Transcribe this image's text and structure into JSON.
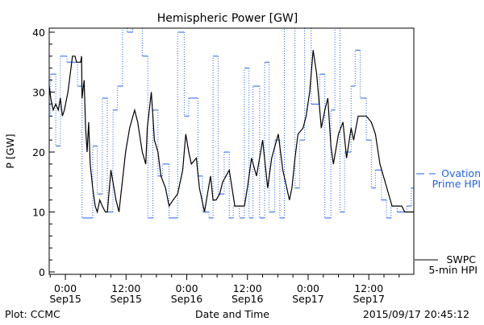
{
  "chart_data": {
    "type": "line",
    "title": "Hemispheric Power [GW]",
    "xlabel": "Date and Time",
    "ylabel": "P [GW]",
    "ylim": [
      0,
      40
    ],
    "xlim_hours_from_sep15_0000": [
      -3.2,
      68.9
    ],
    "y_ticks": [
      "0",
      "10",
      "20",
      "30",
      "40"
    ],
    "x_ticks": [
      {
        "hour": 0,
        "time": "0:00",
        "date": "Sep15"
      },
      {
        "hour": 12,
        "time": "12:00",
        "date": "Sep15"
      },
      {
        "hour": 24,
        "time": "0:00",
        "date": "Sep16"
      },
      {
        "hour": 36,
        "time": "12:00",
        "date": "Sep16"
      },
      {
        "hour": 48,
        "time": "0:00",
        "date": "Sep17"
      },
      {
        "hour": 60,
        "time": "12:00",
        "date": "Sep17"
      }
    ],
    "series": [
      {
        "name": "SWPC 5-min HPI",
        "legend": [
          "SWPC",
          "5-min HPI"
        ],
        "color": "#000000",
        "points": [
          [
            -3.2,
            31
          ],
          [
            -2.9,
            29
          ],
          [
            -2.4,
            27
          ],
          [
            -1.9,
            28
          ],
          [
            -1.4,
            27
          ],
          [
            -1.0,
            29
          ],
          [
            -0.6,
            26
          ],
          [
            -0.2,
            27
          ],
          [
            0.5,
            30
          ],
          [
            1.1,
            34
          ],
          [
            1.4,
            36
          ],
          [
            1.9,
            36
          ],
          [
            2.2,
            35
          ],
          [
            3.0,
            35
          ],
          [
            3.2,
            36
          ],
          [
            3.3,
            29
          ],
          [
            3.7,
            32
          ],
          [
            4.0,
            24
          ],
          [
            4.3,
            20
          ],
          [
            4.6,
            25
          ],
          [
            4.9,
            18
          ],
          [
            5.4,
            14
          ],
          [
            5.9,
            11
          ],
          [
            6.3,
            10
          ],
          [
            6.8,
            12
          ],
          [
            7.3,
            11
          ],
          [
            7.9,
            10
          ],
          [
            8.3,
            10
          ],
          [
            9.0,
            17
          ],
          [
            10.0,
            12
          ],
          [
            10.6,
            10
          ],
          [
            11.9,
            20
          ],
          [
            12.7,
            24
          ],
          [
            13.7,
            27
          ],
          [
            14.3,
            25
          ],
          [
            15.2,
            20
          ],
          [
            15.9,
            18
          ],
          [
            16.2,
            24
          ],
          [
            17.0,
            30
          ],
          [
            17.6,
            22
          ],
          [
            18.3,
            20
          ],
          [
            18.9,
            16
          ],
          [
            19.8,
            14
          ],
          [
            20.5,
            11
          ],
          [
            21.3,
            12
          ],
          [
            22.2,
            13
          ],
          [
            23.2,
            17
          ],
          [
            23.8,
            23
          ],
          [
            24.4,
            20
          ],
          [
            24.9,
            18
          ],
          [
            25.9,
            19
          ],
          [
            26.5,
            14
          ],
          [
            27.5,
            10
          ],
          [
            28.1,
            13
          ],
          [
            28.7,
            16
          ],
          [
            29.2,
            12
          ],
          [
            29.8,
            12
          ],
          [
            30.5,
            13
          ],
          [
            31.1,
            15
          ],
          [
            32.4,
            17
          ],
          [
            33.5,
            11
          ],
          [
            35.4,
            11
          ],
          [
            36.0,
            14
          ],
          [
            36.8,
            19
          ],
          [
            37.8,
            16
          ],
          [
            39.0,
            22
          ],
          [
            40.0,
            14
          ],
          [
            40.8,
            19
          ],
          [
            42.1,
            23
          ],
          [
            43.0,
            17
          ],
          [
            44.3,
            12
          ],
          [
            44.8,
            14
          ],
          [
            45.4,
            19
          ],
          [
            46.0,
            23
          ],
          [
            47.0,
            24
          ],
          [
            47.6,
            26
          ],
          [
            48.3,
            30
          ],
          [
            49.0,
            37
          ],
          [
            49.7,
            33
          ],
          [
            50.6,
            24
          ],
          [
            51.3,
            27
          ],
          [
            51.9,
            29
          ],
          [
            52.5,
            21
          ],
          [
            53.0,
            18
          ],
          [
            54.0,
            23
          ],
          [
            54.9,
            25
          ],
          [
            55.6,
            19
          ],
          [
            56.5,
            24
          ],
          [
            57.0,
            22
          ],
          [
            57.9,
            26
          ],
          [
            59.5,
            26
          ],
          [
            60.5,
            25
          ],
          [
            61.3,
            23
          ],
          [
            62.2,
            18
          ],
          [
            64.6,
            11
          ],
          [
            66.5,
            11
          ],
          [
            67.1,
            10
          ],
          [
            68.9,
            10
          ]
        ]
      },
      {
        "name": "Ovation Prime HPI",
        "legend": [
          "Ovation",
          "Prime HPI"
        ],
        "color": "#2060f0",
        "steps": [
          [
            -3.2,
            -2.9,
            26
          ],
          [
            -2.9,
            -1.9,
            33
          ],
          [
            -1.9,
            -1.0,
            21
          ],
          [
            -1.0,
            0.3,
            36
          ],
          [
            0.3,
            2.4,
            35
          ],
          [
            2.4,
            3.3,
            31
          ],
          [
            3.3,
            5.4,
            9
          ],
          [
            5.4,
            6.3,
            21
          ],
          [
            6.3,
            7.3,
            13
          ],
          [
            7.3,
            8.3,
            29
          ],
          [
            8.3,
            9.4,
            10
          ],
          [
            9.4,
            10.3,
            27
          ],
          [
            10.3,
            11.3,
            31
          ],
          [
            11.3,
            12.2,
            41
          ],
          [
            12.2,
            13.3,
            40
          ],
          [
            13.3,
            15.2,
            41
          ],
          [
            15.2,
            16.3,
            36
          ],
          [
            16.3,
            17.3,
            9
          ],
          [
            17.3,
            18.3,
            27
          ],
          [
            18.3,
            19.2,
            16
          ],
          [
            19.2,
            20.5,
            18
          ],
          [
            20.5,
            22.2,
            9
          ],
          [
            22.2,
            23.5,
            40
          ],
          [
            23.5,
            24.4,
            26
          ],
          [
            24.4,
            26.2,
            29
          ],
          [
            26.2,
            27.1,
            16
          ],
          [
            27.1,
            28.4,
            10
          ],
          [
            28.4,
            29.2,
            9
          ],
          [
            29.2,
            30.2,
            36
          ],
          [
            30.2,
            31.4,
            13
          ],
          [
            31.4,
            32.4,
            20
          ],
          [
            32.4,
            33.2,
            9
          ],
          [
            33.2,
            34.4,
            11
          ],
          [
            34.4,
            35.4,
            9
          ],
          [
            35.4,
            36.3,
            34
          ],
          [
            36.3,
            37.1,
            9
          ],
          [
            37.1,
            38.4,
            31
          ],
          [
            38.4,
            39.4,
            9
          ],
          [
            39.4,
            40.3,
            35
          ],
          [
            40.3,
            41.4,
            10
          ],
          [
            41.4,
            42.4,
            22
          ],
          [
            42.4,
            43.3,
            9
          ],
          [
            43.3,
            45.4,
            41
          ],
          [
            45.4,
            46.3,
            14
          ],
          [
            46.3,
            47.3,
            22
          ],
          [
            47.3,
            48.6,
            41
          ],
          [
            48.6,
            50.3,
            28
          ],
          [
            50.3,
            51.3,
            33
          ],
          [
            51.3,
            52.5,
            9
          ],
          [
            52.5,
            53.3,
            27
          ],
          [
            53.3,
            54.3,
            41
          ],
          [
            54.3,
            55.2,
            10
          ],
          [
            55.2,
            56.5,
            20
          ],
          [
            56.5,
            57.3,
            31
          ],
          [
            57.3,
            58.3,
            37
          ],
          [
            58.3,
            59.5,
            29
          ],
          [
            59.5,
            60.5,
            22
          ],
          [
            60.5,
            61.3,
            14
          ],
          [
            61.3,
            62.5,
            17
          ],
          [
            62.5,
            63.5,
            12
          ],
          [
            63.5,
            64.4,
            9
          ],
          [
            64.4,
            65.6,
            11
          ],
          [
            65.6,
            67.5,
            10
          ],
          [
            67.5,
            68.4,
            11
          ],
          [
            68.4,
            68.9,
            14
          ]
        ]
      }
    ]
  },
  "footer": {
    "left": "Plot: CCMC",
    "timestamp": "2015/09/17 20:45:12"
  }
}
